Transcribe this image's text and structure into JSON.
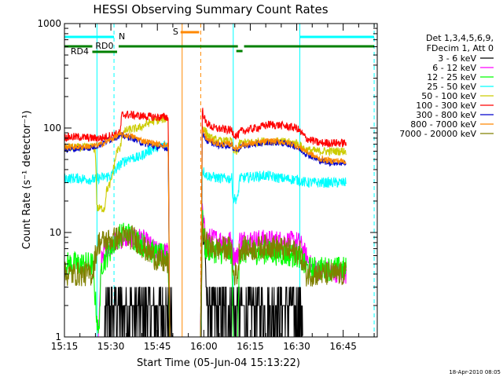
{
  "chart_data": {
    "type": "line",
    "title": "HESSI Observing Summary Count Rates",
    "xlabel": "Start Time (05-Jun-04 15:13:22)",
    "ylabel": "Count Rate (s⁻¹ detector⁻¹)",
    "yscale": "log",
    "ylim": [
      1,
      1000
    ],
    "xlim_min": [
      0,
      101
    ],
    "x_unit": "minutes after 15:15",
    "xticks": [
      {
        "t": 0,
        "label": "15:15"
      },
      {
        "t": 15,
        "label": "15:30"
      },
      {
        "t": 30,
        "label": "15:45"
      },
      {
        "t": 45,
        "label": "16:00"
      },
      {
        "t": 60,
        "label": "16:15"
      },
      {
        "t": 75,
        "label": "16:30"
      },
      {
        "t": 90,
        "label": "16:45"
      }
    ],
    "yticks": [
      {
        "v": 1,
        "label": "1"
      },
      {
        "v": 10,
        "label": "10"
      },
      {
        "v": 100,
        "label": "100"
      },
      {
        "v": 1000,
        "label": "1000"
      }
    ],
    "legend_header": [
      "Det 1,3,4,5,6,9,",
      "FDecim 1, Att 0"
    ],
    "legend_position": "right",
    "series": [
      {
        "name": "3 - 6 keV",
        "color": "#000000",
        "noise": 0.5,
        "pts": [
          [
            9,
            1
          ],
          [
            13,
            1
          ],
          [
            13.5,
            2.5
          ],
          [
            17,
            3
          ],
          [
            25,
            2.8
          ],
          [
            30,
            2.2
          ],
          [
            35,
            1
          ],
          [
            44,
            1
          ],
          [
            44.5,
            15
          ],
          [
            45.5,
            6
          ],
          [
            46.5,
            1.5
          ],
          [
            48,
            1.5
          ],
          [
            54,
            1.7
          ],
          [
            55,
            1
          ],
          [
            56,
            1.8
          ],
          [
            70,
            2
          ],
          [
            75,
            1.8
          ],
          [
            77,
            1
          ]
        ]
      },
      {
        "name": "6 - 12 keV",
        "color": "#ff00ff",
        "noise": 0.1,
        "pts": [
          [
            9,
            1
          ],
          [
            11,
            1
          ],
          [
            12,
            6
          ],
          [
            13,
            7
          ],
          [
            17,
            8.5
          ],
          [
            22,
            9
          ],
          [
            25,
            8.8
          ],
          [
            30,
            6.5
          ],
          [
            33.5,
            6.5
          ],
          [
            34,
            1
          ],
          [
            44,
            1
          ],
          [
            44.5,
            16
          ],
          [
            45.5,
            9
          ],
          [
            50,
            8.5
          ],
          [
            54,
            8.3
          ],
          [
            54.5,
            6
          ],
          [
            56,
            6
          ],
          [
            56.5,
            8.5
          ],
          [
            65,
            8.5
          ],
          [
            75,
            8.2
          ],
          [
            76,
            8
          ],
          [
            80,
            4.5
          ],
          [
            91,
            4
          ]
        ]
      },
      {
        "name": "12 - 25 keV",
        "color": "#00ff00",
        "noise": 0.12,
        "pts": [
          [
            0,
            5
          ],
          [
            4,
            5
          ],
          [
            9,
            5
          ],
          [
            11,
            1
          ],
          [
            12,
            5
          ],
          [
            13,
            5.5
          ],
          [
            17,
            9
          ],
          [
            20,
            10
          ],
          [
            22,
            9
          ],
          [
            27,
            7
          ],
          [
            30,
            6
          ],
          [
            33.5,
            6
          ],
          [
            34,
            1
          ],
          [
            44,
            1
          ],
          [
            44.5,
            14
          ],
          [
            45.5,
            7
          ],
          [
            50,
            6.5
          ],
          [
            54,
            6.5
          ],
          [
            54.5,
            1
          ],
          [
            56,
            1
          ],
          [
            56.5,
            6.5
          ],
          [
            65,
            6.5
          ],
          [
            75,
            6
          ],
          [
            76,
            6
          ],
          [
            78,
            4.5
          ],
          [
            91,
            4.5
          ]
        ]
      },
      {
        "name": "25 - 50 keV",
        "color": "#00ffff",
        "noise": 0.05,
        "pts": [
          [
            0,
            33
          ],
          [
            5,
            33
          ],
          [
            9,
            32
          ],
          [
            11,
            33
          ],
          [
            15,
            35
          ],
          [
            18,
            45
          ],
          [
            21,
            52
          ],
          [
            24,
            52
          ],
          [
            27,
            60
          ],
          [
            30,
            66
          ],
          [
            33.5,
            70
          ],
          [
            34,
            1
          ],
          [
            44,
            1
          ],
          [
            44.5,
            40
          ],
          [
            46,
            35
          ],
          [
            50,
            33
          ],
          [
            54,
            33
          ],
          [
            54.5,
            21
          ],
          [
            56,
            21
          ],
          [
            56.5,
            33
          ],
          [
            60,
            34
          ],
          [
            65,
            35
          ],
          [
            70,
            33
          ],
          [
            75,
            32
          ],
          [
            78,
            30
          ],
          [
            85,
            30
          ],
          [
            91,
            30
          ]
        ]
      },
      {
        "name": "50 - 100 keV",
        "color": "#cccc00",
        "noise": 0.04,
        "pts": [
          [
            0,
            65
          ],
          [
            5,
            65
          ],
          [
            9,
            66
          ],
          [
            10,
            62
          ],
          [
            10.5,
            17
          ],
          [
            13,
            17
          ],
          [
            13.5,
            25
          ],
          [
            15,
            30
          ],
          [
            17,
            62
          ],
          [
            18,
            62
          ],
          [
            18.5,
            85
          ],
          [
            20,
            95
          ],
          [
            24,
            100
          ],
          [
            28,
            115
          ],
          [
            30,
            118
          ],
          [
            33.5,
            125
          ],
          [
            34,
            1
          ],
          [
            44,
            1
          ],
          [
            44.5,
            105
          ],
          [
            47,
            80
          ],
          [
            50,
            75
          ],
          [
            54,
            75
          ],
          [
            54.5,
            60
          ],
          [
            56,
            60
          ],
          [
            56.5,
            72
          ],
          [
            60,
            73
          ],
          [
            65,
            75
          ],
          [
            70,
            74
          ],
          [
            74,
            72
          ],
          [
            75,
            72
          ],
          [
            78,
            62
          ],
          [
            82,
            60
          ],
          [
            91,
            60
          ]
        ]
      },
      {
        "name": "100 - 300 keV",
        "color": "#ff0000",
        "noise": 0.04,
        "pts": [
          [
            0,
            82
          ],
          [
            5,
            82
          ],
          [
            9,
            80
          ],
          [
            12,
            80
          ],
          [
            15,
            85
          ],
          [
            17,
            88
          ],
          [
            18,
            90
          ],
          [
            18.5,
            132
          ],
          [
            20,
            135
          ],
          [
            25,
            130
          ],
          [
            30,
            127
          ],
          [
            33.5,
            127
          ],
          [
            34,
            1
          ],
          [
            44,
            1
          ],
          [
            44.5,
            150
          ],
          [
            45.5,
            115
          ],
          [
            48,
            100
          ],
          [
            54,
            95
          ],
          [
            55,
            85
          ],
          [
            56,
            85
          ],
          [
            57,
            93
          ],
          [
            62,
            100
          ],
          [
            66,
            108
          ],
          [
            70,
            106
          ],
          [
            75,
            100
          ],
          [
            78,
            80
          ],
          [
            82,
            72
          ],
          [
            91,
            72
          ]
        ]
      },
      {
        "name": "300 - 800 keV",
        "color": "#0000cc",
        "noise": 0.03,
        "pts": [
          [
            0,
            62
          ],
          [
            5,
            64
          ],
          [
            9,
            65
          ],
          [
            12,
            70
          ],
          [
            15,
            78
          ],
          [
            18,
            85
          ],
          [
            22,
            80
          ],
          [
            25,
            72
          ],
          [
            30,
            66
          ],
          [
            33.5,
            64
          ],
          [
            34,
            1
          ],
          [
            44,
            1
          ],
          [
            44.5,
            90
          ],
          [
            46,
            75
          ],
          [
            50,
            68
          ],
          [
            54,
            68
          ],
          [
            55,
            62
          ],
          [
            56,
            62
          ],
          [
            57,
            67
          ],
          [
            62,
            70
          ],
          [
            66,
            73
          ],
          [
            70,
            72
          ],
          [
            74,
            68
          ],
          [
            78,
            57
          ],
          [
            82,
            49
          ],
          [
            85,
            47
          ],
          [
            91,
            46
          ]
        ]
      },
      {
        "name": "800 - 7000 keV",
        "color": "#ff8800",
        "noise": 0.03,
        "pts": [
          [
            0,
            66
          ],
          [
            5,
            66
          ],
          [
            9,
            67
          ],
          [
            12,
            70
          ],
          [
            15,
            78
          ],
          [
            18,
            87
          ],
          [
            22,
            83
          ],
          [
            25,
            76
          ],
          [
            30,
            70
          ],
          [
            33.5,
            68
          ],
          [
            34,
            1
          ],
          [
            44,
            1
          ],
          [
            44.5,
            95
          ],
          [
            46,
            78
          ],
          [
            50,
            70
          ],
          [
            54,
            70
          ],
          [
            55,
            64
          ],
          [
            56,
            64
          ],
          [
            57,
            69
          ],
          [
            62,
            72
          ],
          [
            66,
            75
          ],
          [
            70,
            74
          ],
          [
            74,
            70
          ],
          [
            78,
            60
          ],
          [
            82,
            51
          ],
          [
            85,
            49
          ],
          [
            91,
            48
          ]
        ]
      },
      {
        "name": "7000 - 20000 keV",
        "color": "#808000",
        "noise": 0.12,
        "pts": [
          [
            0,
            4
          ],
          [
            6,
            4
          ],
          [
            9,
            4
          ],
          [
            10,
            6
          ],
          [
            11,
            8
          ],
          [
            15,
            8.5
          ],
          [
            18,
            9
          ],
          [
            22,
            9
          ],
          [
            24,
            8
          ],
          [
            27,
            6.5
          ],
          [
            30,
            5.5
          ],
          [
            33.5,
            5
          ],
          [
            34,
            1
          ],
          [
            44,
            1
          ],
          [
            44.5,
            12
          ],
          [
            45.5,
            8
          ],
          [
            48,
            7
          ],
          [
            54,
            7
          ],
          [
            54.5,
            4
          ],
          [
            56,
            4
          ],
          [
            56.5,
            7
          ],
          [
            62,
            7
          ],
          [
            66,
            7.5
          ],
          [
            70,
            7
          ],
          [
            75,
            6.5
          ],
          [
            76,
            6.5
          ],
          [
            78,
            4
          ],
          [
            85,
            4
          ],
          [
            91,
            4
          ]
        ]
      }
    ],
    "markers": [
      {
        "id": "N",
        "label": "N",
        "color": "#00ffff"
      },
      {
        "id": "S",
        "label": "S",
        "color": "#ff8800"
      },
      {
        "id": "RD0",
        "label": "RD0",
        "color": "#008000"
      },
      {
        "id": "RD4",
        "label": "RD4",
        "color": "#008000"
      }
    ],
    "timestamp": "18-Apr-2010 08:05"
  }
}
